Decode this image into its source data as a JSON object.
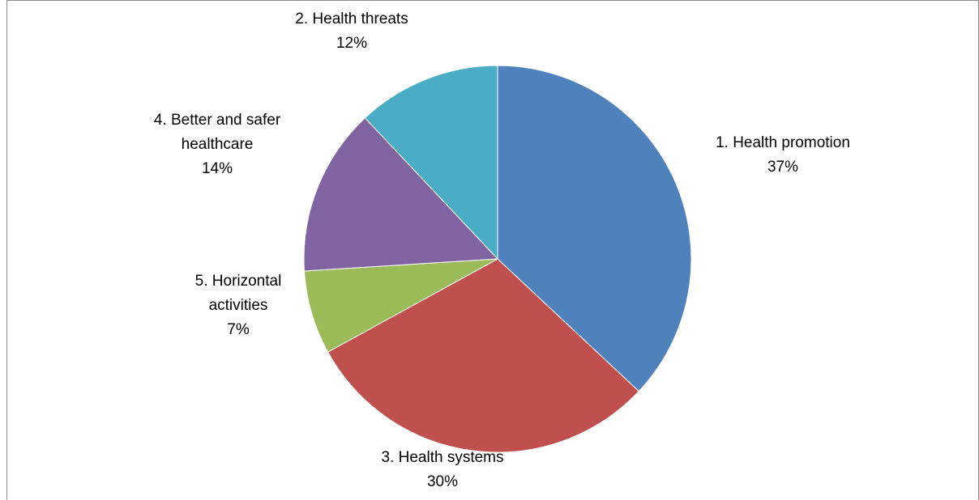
{
  "chart_data": {
    "type": "pie",
    "start_angle_deg": 0,
    "direction": "clockwise",
    "slices": [
      {
        "label_lines": [
          "1. Health promotion"
        ],
        "value": 37,
        "pct_label": "37%",
        "color": "#4F81BD"
      },
      {
        "label_lines": [
          "3. Health systems"
        ],
        "value": 30,
        "pct_label": "30%",
        "color": "#C0504D"
      },
      {
        "label_lines": [
          "5. Horizontal",
          "activities"
        ],
        "value": 7,
        "pct_label": "7%",
        "color": "#9BBB59"
      },
      {
        "label_lines": [
          "4. Better and safer",
          "healthcare"
        ],
        "value": 14,
        "pct_label": "14%",
        "color": "#8064A2"
      },
      {
        "label_lines": [
          "2. Health threats"
        ],
        "value": 12,
        "pct_label": "12%",
        "color": "#4BACC6"
      }
    ]
  }
}
